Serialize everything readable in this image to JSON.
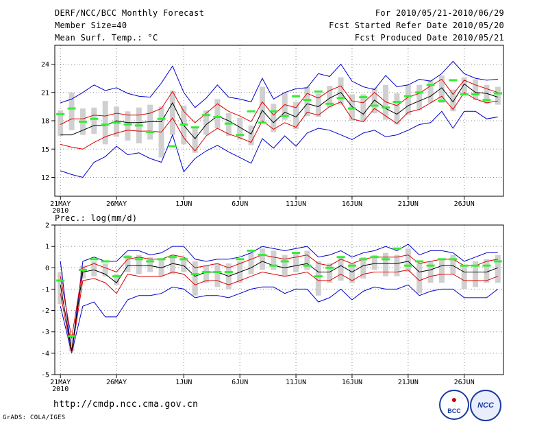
{
  "header": {
    "title": "DERF/NCC/BCC Monthly Forecast",
    "member_size": "Member Size=40",
    "period": "For 2010/05/21-2010/06/29",
    "started": "Fcst Started Refer Date 2010/05/20",
    "produced": "Fcst Produced Date 2010/05/21"
  },
  "footer": {
    "url": "http://cmdp.ncc.cma.gov.cn",
    "credit": "GrADS: COLA/IGES",
    "logo1": "BCC",
    "logo2": "NCC"
  },
  "colors": {
    "max_min": "#0000cc",
    "spread": "#dd0000",
    "mean": "#000000",
    "median": "#33ee33",
    "box": "#d0d0d0"
  },
  "chart_data": [
    {
      "type": "line",
      "title": "Mean Surf. Temp.: °C",
      "ylim": [
        10,
        26
      ],
      "yticks": [
        12,
        15,
        18,
        21,
        24
      ],
      "xlim": [
        0,
        40
      ],
      "xticks": [
        {
          "x": 0.5,
          "label": "21MAY",
          "sub": "2010"
        },
        {
          "x": 5.5,
          "label": "26MAY"
        },
        {
          "x": 11.5,
          "label": "1JUN"
        },
        {
          "x": 16.5,
          "label": "6JUN"
        },
        {
          "x": 21.5,
          "label": "11JUN"
        },
        {
          "x": 26.5,
          "label": "16JUN"
        },
        {
          "x": 31.5,
          "label": "21JUN"
        },
        {
          "x": 36.5,
          "label": "26JUN"
        }
      ],
      "grid": true,
      "x": [
        0.5,
        1.5,
        2.5,
        3.5,
        4.5,
        5.5,
        6.5,
        7.5,
        8.5,
        9.5,
        10.5,
        11.5,
        12.5,
        13.5,
        14.5,
        15.5,
        16.5,
        17.5,
        18.5,
        19.5,
        20.5,
        21.5,
        22.5,
        23.5,
        24.5,
        25.5,
        26.5,
        27.5,
        28.5,
        29.5,
        30.5,
        31.5,
        32.5,
        33.5,
        34.5,
        35.5,
        36.5,
        37.5,
        38.5,
        39.5
      ],
      "series": [
        {
          "name": "max",
          "values": [
            19.9,
            20.3,
            21.0,
            21.8,
            21.2,
            21.5,
            20.9,
            20.6,
            20.5,
            22.0,
            23.8,
            21.0,
            19.4,
            20.4,
            21.8,
            20.5,
            20.3,
            20.0,
            22.5,
            20.3,
            21.0,
            21.4,
            21.5,
            23.0,
            22.7,
            24.0,
            22.2,
            21.6,
            21.3,
            22.8,
            21.6,
            21.8,
            22.4,
            22.2,
            23.0,
            24.3,
            23.0,
            22.5,
            22.3,
            22.4
          ]
        },
        {
          "name": "mean_plus_sd",
          "values": [
            17.6,
            18.2,
            18.2,
            18.6,
            18.5,
            18.8,
            18.6,
            18.6,
            18.8,
            19.3,
            21.1,
            19.0,
            17.8,
            18.8,
            19.8,
            19.0,
            18.5,
            17.9,
            20.0,
            18.6,
            19.7,
            19.4,
            20.9,
            20.4,
            21.2,
            21.7,
            20.1,
            19.9,
            21.0,
            20.0,
            19.6,
            20.5,
            20.9,
            21.7,
            22.4,
            20.8,
            22.3,
            21.8,
            21.4,
            21.0
          ]
        },
        {
          "name": "mean",
          "values": [
            16.5,
            16.5,
            17.0,
            17.5,
            17.5,
            18.0,
            17.8,
            17.8,
            17.9,
            17.9,
            19.9,
            17.5,
            16.1,
            17.6,
            18.5,
            18.0,
            17.3,
            16.6,
            19.1,
            17.8,
            18.9,
            18.4,
            19.8,
            19.5,
            20.4,
            21.0,
            19.5,
            18.7,
            20.2,
            19.3,
            18.7,
            19.6,
            20.1,
            20.6,
            21.5,
            20.0,
            21.9,
            21.0,
            20.9,
            20.5
          ]
        },
        {
          "name": "mean_minus_sd",
          "values": [
            15.5,
            15.2,
            15.0,
            15.7,
            16.3,
            16.7,
            17.0,
            16.9,
            16.9,
            16.8,
            18.3,
            16.2,
            14.8,
            16.4,
            17.2,
            16.6,
            16.2,
            15.7,
            18.0,
            17.1,
            17.8,
            17.3,
            18.9,
            18.6,
            19.5,
            20.0,
            18.2,
            17.9,
            19.3,
            18.5,
            17.7,
            18.9,
            19.2,
            19.9,
            20.6,
            19.2,
            21.0,
            20.3,
            19.9,
            20.1
          ]
        },
        {
          "name": "min",
          "values": [
            12.7,
            12.3,
            12.0,
            13.6,
            14.2,
            15.3,
            14.4,
            14.6,
            14.0,
            13.6,
            16.5,
            12.6,
            14.0,
            14.8,
            15.4,
            14.7,
            14.1,
            13.5,
            16.1,
            15.1,
            16.4,
            15.3,
            16.7,
            17.2,
            17.0,
            16.5,
            16.0,
            16.7,
            17.0,
            16.3,
            16.5,
            17.0,
            17.6,
            17.8,
            19.0,
            17.2,
            19.0,
            19.0,
            18.2,
            18.4
          ]
        },
        {
          "name": "median",
          "values": [
            18.7,
            19.3,
            17.9,
            18.2,
            17.6,
            17.8,
            17.6,
            17.5,
            16.8,
            18.2,
            15.3,
            17.6,
            17.3,
            18.6,
            18.4,
            17.7,
            16.5,
            19.0,
            17.8,
            19.0,
            18.5,
            20.6,
            20.2,
            21.1,
            19.8,
            20.4,
            19.3,
            20.5,
            19.6,
            19.4,
            20.0,
            20.6,
            21.0,
            21.8,
            20.1,
            22.3,
            20.8,
            20.8,
            20.2,
            20.9
          ]
        },
        {
          "name": "box_low",
          "values": [
            16.4,
            17.0,
            16.5,
            16.6,
            15.5,
            16.3,
            15.9,
            15.6,
            16.0,
            14.1,
            16.5,
            15.5,
            14.6,
            16.5,
            17.2,
            16.4,
            16.0,
            15.4,
            18.0,
            16.8,
            18.1,
            17.1,
            18.5,
            18.4,
            19.4,
            19.7,
            18.0,
            17.9,
            18.8,
            18.1,
            17.6,
            18.6,
            19.1,
            19.9,
            19.9,
            19.0,
            20.8,
            20.2,
            19.8,
            19.7
          ]
        },
        {
          "name": "box_high",
          "values": [
            19.1,
            21.0,
            19.3,
            19.4,
            20.1,
            19.5,
            19.0,
            19.4,
            19.7,
            19.5,
            21.2,
            19.6,
            17.2,
            19.1,
            20.3,
            18.8,
            18.3,
            17.5,
            21.6,
            19.8,
            21.0,
            20.0,
            21.6,
            20.9,
            21.7,
            22.6,
            20.8,
            20.8,
            21.5,
            21.8,
            20.9,
            21.8,
            21.8,
            22.3,
            22.8,
            21.3,
            22.6,
            22.4,
            21.8,
            21.6
          ]
        }
      ]
    },
    {
      "type": "line",
      "title": "Prec.: log(mm/d)",
      "ylim": [
        -5,
        2
      ],
      "yticks": [
        -5,
        -4,
        -3,
        -2,
        -1,
        0,
        1,
        2
      ],
      "xlim": [
        0,
        40
      ],
      "xticks": [
        {
          "x": 0.5,
          "label": "21MAY",
          "sub": "2010"
        },
        {
          "x": 5.5,
          "label": "26MAY"
        },
        {
          "x": 11.5,
          "label": "1JUN"
        },
        {
          "x": 16.5,
          "label": "6JUN"
        },
        {
          "x": 21.5,
          "label": "11JUN"
        },
        {
          "x": 26.5,
          "label": "16JUN"
        },
        {
          "x": 31.5,
          "label": "21JUN"
        },
        {
          "x": 36.5,
          "label": "26JUN"
        }
      ],
      "grid": true,
      "x": [
        0.5,
        1.5,
        2.5,
        3.5,
        4.5,
        5.5,
        6.5,
        7.5,
        8.5,
        9.5,
        10.5,
        11.5,
        12.5,
        13.5,
        14.5,
        15.5,
        16.5,
        17.5,
        18.5,
        19.5,
        20.5,
        21.5,
        22.5,
        23.5,
        24.5,
        25.5,
        26.5,
        27.5,
        28.5,
        29.5,
        30.5,
        31.5,
        32.5,
        33.5,
        34.5,
        35.5,
        36.5,
        37.5,
        38.5,
        39.5
      ],
      "series": [
        {
          "name": "max",
          "values": [
            0.3,
            -4.0,
            0.3,
            0.5,
            0.3,
            0.3,
            0.8,
            0.8,
            0.6,
            0.7,
            1.0,
            1.0,
            0.4,
            0.3,
            0.4,
            0.4,
            0.5,
            0.7,
            1.0,
            0.9,
            0.8,
            0.9,
            1.0,
            0.5,
            0.6,
            0.8,
            0.5,
            0.7,
            0.8,
            1.0,
            0.8,
            1.1,
            0.6,
            0.8,
            0.8,
            0.7,
            0.3,
            0.5,
            0.7,
            0.7
          ]
        },
        {
          "name": "mean_plus_sd",
          "values": [
            -0.4,
            -3.3,
            0.0,
            0.2,
            0.0,
            -0.2,
            0.4,
            0.5,
            0.4,
            0.4,
            0.6,
            0.5,
            0.0,
            0.1,
            0.2,
            0.0,
            0.2,
            0.4,
            0.6,
            0.5,
            0.4,
            0.5,
            0.6,
            0.2,
            0.1,
            0.4,
            0.2,
            0.4,
            0.5,
            0.5,
            0.5,
            0.6,
            0.2,
            0.3,
            0.4,
            0.4,
            0.1,
            0.1,
            0.3,
            0.4
          ]
        },
        {
          "name": "mean",
          "values": [
            -0.8,
            -3.9,
            -0.2,
            -0.1,
            -0.3,
            -0.7,
            0.1,
            0.1,
            0.1,
            0.0,
            0.2,
            0.1,
            -0.4,
            -0.2,
            -0.2,
            -0.4,
            -0.2,
            0.0,
            0.3,
            0.1,
            0.0,
            0.1,
            0.2,
            -0.2,
            -0.2,
            0.1,
            -0.2,
            0.1,
            0.2,
            0.2,
            0.2,
            0.3,
            -0.2,
            -0.1,
            0.1,
            0.1,
            -0.2,
            -0.2,
            -0.2,
            0.0
          ]
        },
        {
          "name": "mean_minus_sd",
          "values": [
            -1.2,
            -4.0,
            -0.6,
            -0.5,
            -0.7,
            -1.2,
            -0.3,
            -0.4,
            -0.4,
            -0.4,
            -0.2,
            -0.3,
            -0.8,
            -0.6,
            -0.6,
            -0.8,
            -0.6,
            -0.4,
            -0.2,
            -0.3,
            -0.4,
            -0.3,
            -0.2,
            -0.6,
            -0.6,
            -0.3,
            -0.6,
            -0.3,
            -0.2,
            -0.2,
            -0.2,
            -0.1,
            -0.6,
            -0.4,
            -0.3,
            -0.3,
            -0.6,
            -0.6,
            -0.6,
            -0.4
          ]
        },
        {
          "name": "min",
          "values": [
            -1.8,
            -4.0,
            -1.8,
            -1.6,
            -2.3,
            -2.3,
            -1.5,
            -1.3,
            -1.3,
            -1.2,
            -0.9,
            -1.0,
            -1.4,
            -1.3,
            -1.3,
            -1.4,
            -1.2,
            -1.0,
            -0.9,
            -0.9,
            -1.2,
            -1.0,
            -1.0,
            -1.6,
            -1.4,
            -1.0,
            -1.5,
            -1.1,
            -0.9,
            -1.0,
            -1.0,
            -0.8,
            -1.3,
            -1.1,
            -1.0,
            -1.0,
            -1.4,
            -1.4,
            -1.4,
            -1.0
          ]
        },
        {
          "name": "median",
          "values": [
            -0.6,
            -3.2,
            -0.1,
            0.4,
            0.3,
            -0.4,
            0.5,
            0.4,
            0.3,
            0.4,
            0.5,
            0.4,
            -0.3,
            -0.2,
            -0.2,
            -0.2,
            0.4,
            0.8,
            0.6,
            0.1,
            0.3,
            0.7,
            0.1,
            -0.4,
            0.0,
            0.5,
            0.1,
            0.4,
            0.5,
            0.4,
            0.9,
            0.1,
            0.3,
            0.1,
            0.4,
            0.4,
            0.1,
            0.1,
            0.1,
            0.3
          ]
        },
        {
          "name": "box_low",
          "values": [
            -1.7,
            -3.9,
            -0.5,
            -0.4,
            -0.4,
            -0.8,
            -0.2,
            -0.3,
            -0.2,
            -0.4,
            -0.3,
            -0.2,
            -1.3,
            -0.7,
            -0.9,
            -1.0,
            -0.7,
            -0.3,
            -0.1,
            -0.1,
            -0.4,
            -0.2,
            -0.1,
            -1.3,
            -0.7,
            -0.6,
            -0.7,
            -0.5,
            -0.1,
            -0.4,
            -0.4,
            -0.2,
            -1.2,
            -0.7,
            -0.7,
            -0.3,
            -1.0,
            -0.9,
            -0.7,
            -0.7
          ]
        },
        {
          "name": "box_high",
          "values": [
            -0.2,
            -3.1,
            0.1,
            0.3,
            0.2,
            -0.3,
            0.6,
            0.6,
            0.5,
            0.4,
            0.6,
            0.5,
            0.3,
            0.1,
            0.2,
            0.2,
            0.3,
            0.7,
            0.9,
            0.8,
            0.6,
            0.7,
            0.8,
            0.3,
            0.2,
            0.5,
            0.2,
            0.5,
            0.6,
            0.7,
            0.6,
            0.9,
            0.2,
            0.3,
            0.4,
            0.6,
            0.1,
            0.3,
            0.4,
            0.6
          ]
        }
      ]
    }
  ]
}
